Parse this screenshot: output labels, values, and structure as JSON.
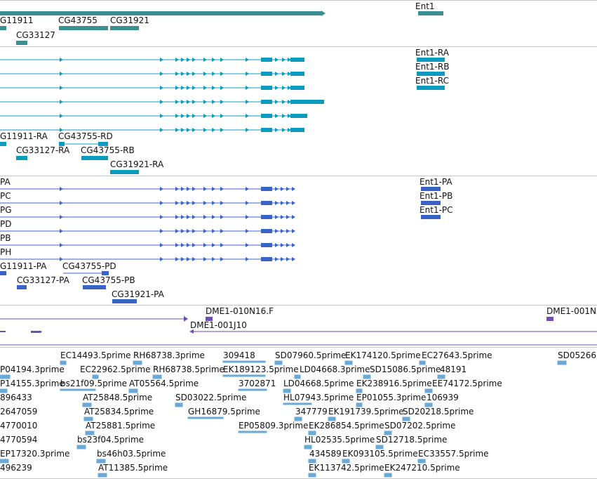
{
  "colors": {
    "gene": "#3a8f92",
    "transcript": "#0b9bbf",
    "protein": "#3a63c8",
    "clone": "#6b4fb5",
    "est": "#6aa9d6",
    "separator": "#c8c8c8"
  },
  "gene_track": {
    "labels": [
      "G11911",
      "CG43755",
      "CG31921",
      "CG33127",
      "Ent1"
    ]
  },
  "transcript_track": {
    "labels": [
      "Ent1-RA",
      "Ent1-RB",
      "Ent1-RC",
      "G11911-RA",
      "CG43755-RD",
      "CG33127-RA",
      "CG43755-RB",
      "CG31921-RA"
    ]
  },
  "protein_track": {
    "labels": [
      "PA",
      "PC",
      "PG",
      "PD",
      "PB",
      "PH",
      "Ent1-PA",
      "Ent1-PB",
      "Ent1-PC",
      "G11911-PA",
      "CG43755-PD",
      "CG33127-PA",
      "CG43755-PB",
      "CG31921-PA"
    ]
  },
  "clone_track": {
    "labels": [
      "DME1-010N16.F",
      "DME1-001N",
      "DME1-001J10"
    ]
  },
  "est_track": {
    "labels": [
      "EC14493.5prime",
      "RH68738.3prime",
      "309418",
      "SD07960.5prime",
      "EK174120.5prime",
      "EC27643.5prime",
      "SD05266",
      "P04194.3prime",
      "EC22962.5prime",
      "RH68738.5prime",
      "EK189123.5prime",
      "LD04668.3prime",
      "SD15086.5prime",
      "48191",
      "P14155.3prime",
      "bs21f09.5prime",
      "AT05564.5prime",
      "3702871",
      "LD04668.5prime",
      "EK238916.5prime",
      "EE74172.5prime",
      "896433",
      "AT25848.5prime",
      "SD03022.5prime",
      "HL07943.5prime",
      "EP01055.3prime",
      "106939",
      "2647059",
      "AT25834.5prime",
      "GH16879.5prime",
      "347779",
      "EK191739.5prime",
      "SD20218.5prime",
      "4770010",
      "AT25881.5prime",
      "EP05809.3prime",
      "EK286854.5prime",
      "SD07202.5prime",
      "4770594",
      "bs23f04.5prime",
      "HL02535.5prime",
      "SD12718.5prime",
      "EP17320.3prime",
      "bs46h03.5prime",
      "434589",
      "EK093105.5prime",
      "EC33557.5prime",
      "496239",
      "AT11385.5prime",
      "EK113742.5prime",
      "EK247210.5prime"
    ]
  }
}
